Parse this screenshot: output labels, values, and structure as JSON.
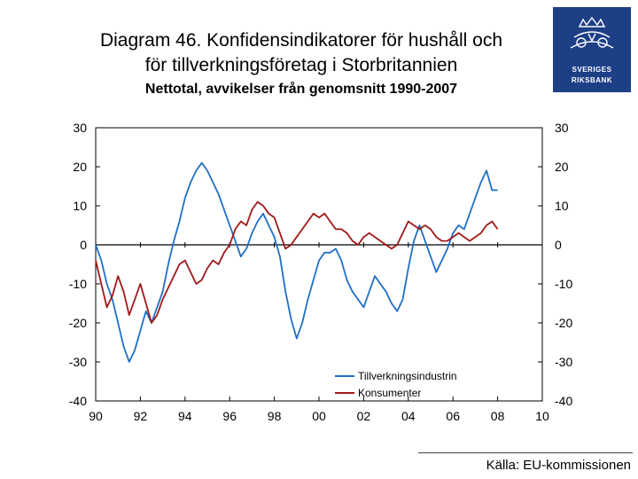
{
  "title": {
    "line1": "Diagram 46. Konfidensindikatorer för hushåll och",
    "line2": "för tillverkningsföretag i Storbritannien"
  },
  "subtitle": "Nettotal, avvikelser från genomsnitt 1990-2007",
  "source": "Källa: EU-kommissionen",
  "logo": {
    "name": "SVERIGES RIKSBANK",
    "line1": "SVERIGES",
    "line2": "RIKSBANK"
  },
  "colors": {
    "manufacturing": "#1f6fc6",
    "consumers": "#a01919",
    "axis": "#000000"
  },
  "chart_data": {
    "type": "line",
    "title": "Konfidensindikatorer för hushåll och för tillverkningsföretag i Storbritannien",
    "xlabel": "",
    "ylabel": "Nettotal, avvikelser från genomsnitt 1990-2007",
    "xlim": [
      1990,
      2010
    ],
    "ylim": [
      -40,
      30
    ],
    "x_tick_labels": [
      "90",
      "92",
      "94",
      "96",
      "98",
      "00",
      "02",
      "04",
      "06",
      "08",
      "10"
    ],
    "x_tick_values": [
      1990,
      1992,
      1994,
      1996,
      1998,
      2000,
      2002,
      2004,
      2006,
      2008,
      2010
    ],
    "y_tick_values": [
      -40,
      -30,
      -20,
      -10,
      0,
      10,
      20,
      30
    ],
    "y_tick_labels": [
      "-40",
      "-30",
      "-20",
      "-10",
      "0",
      "10",
      "20",
      "30"
    ],
    "legend_position": "bottom-right",
    "series": [
      {
        "name": "Tillverkningsindustrin",
        "x": [
          1990.0,
          1990.25,
          1990.5,
          1990.75,
          1991.0,
          1991.25,
          1991.5,
          1991.75,
          1992.0,
          1992.25,
          1992.5,
          1992.75,
          1993.0,
          1993.25,
          1993.5,
          1993.75,
          1994.0,
          1994.25,
          1994.5,
          1994.75,
          1995.0,
          1995.25,
          1995.5,
          1995.75,
          1996.0,
          1996.25,
          1996.5,
          1996.75,
          1997.0,
          1997.25,
          1997.5,
          1997.75,
          1998.0,
          1998.25,
          1998.5,
          1998.75,
          1999.0,
          1999.25,
          1999.5,
          1999.75,
          2000.0,
          2000.25,
          2000.5,
          2000.75,
          2001.0,
          2001.25,
          2001.5,
          2001.75,
          2002.0,
          2002.25,
          2002.5,
          2002.75,
          2003.0,
          2003.25,
          2003.5,
          2003.75,
          2004.0,
          2004.25,
          2004.5,
          2004.75,
          2005.0,
          2005.25,
          2005.5,
          2005.75,
          2006.0,
          2006.25,
          2006.5,
          2006.75,
          2007.0,
          2007.25,
          2007.5,
          2007.75,
          2008.0
        ],
        "values": [
          0,
          -4,
          -10,
          -14,
          -20,
          -26,
          -30,
          -27,
          -22,
          -17,
          -20,
          -16,
          -12,
          -5,
          1,
          6,
          12,
          16,
          19,
          21,
          19,
          16,
          13,
          9,
          5,
          1,
          -3,
          -1,
          3,
          6,
          8,
          5,
          2,
          -3,
          -12,
          -19,
          -24,
          -20,
          -14,
          -9,
          -4,
          -2,
          -2,
          -1,
          -4,
          -9,
          -12,
          -14,
          -16,
          -12,
          -8,
          -10,
          -12,
          -15,
          -17,
          -14,
          -6,
          1,
          5,
          1,
          -3,
          -7,
          -4,
          -1,
          3,
          5,
          4,
          8,
          12,
          16,
          19,
          14,
          14
        ]
      },
      {
        "name": "Konsumenter",
        "x": [
          1990.0,
          1990.25,
          1990.5,
          1990.75,
          1991.0,
          1991.25,
          1991.5,
          1991.75,
          1992.0,
          1992.25,
          1992.5,
          1992.75,
          1993.0,
          1993.25,
          1993.5,
          1993.75,
          1994.0,
          1994.25,
          1994.5,
          1994.75,
          1995.0,
          1995.25,
          1995.5,
          1995.75,
          1996.0,
          1996.25,
          1996.5,
          1996.75,
          1997.0,
          1997.25,
          1997.5,
          1997.75,
          1998.0,
          1998.25,
          1998.5,
          1998.75,
          1999.0,
          1999.25,
          1999.5,
          1999.75,
          2000.0,
          2000.25,
          2000.5,
          2000.75,
          2001.0,
          2001.25,
          2001.5,
          2001.75,
          2002.0,
          2002.25,
          2002.5,
          2002.75,
          2003.0,
          2003.25,
          2003.5,
          2003.75,
          2004.0,
          2004.25,
          2004.5,
          2004.75,
          2005.0,
          2005.25,
          2005.5,
          2005.75,
          2006.0,
          2006.25,
          2006.5,
          2006.75,
          2007.0,
          2007.25,
          2007.5,
          2007.75,
          2008.0
        ],
        "values": [
          -4,
          -10,
          -16,
          -13,
          -8,
          -12,
          -18,
          -14,
          -10,
          -15,
          -20,
          -18,
          -14,
          -11,
          -8,
          -5,
          -4,
          -7,
          -10,
          -9,
          -6,
          -4,
          -5,
          -2,
          0,
          4,
          6,
          5,
          9,
          11,
          10,
          8,
          7,
          3,
          -1,
          0,
          2,
          4,
          6,
          8,
          7,
          8,
          6,
          4,
          4,
          3,
          1,
          0,
          2,
          3,
          2,
          1,
          0,
          -1,
          0,
          3,
          6,
          5,
          4,
          5,
          4,
          2,
          1,
          1,
          2,
          3,
          2,
          1,
          2,
          3,
          5,
          6,
          4
        ]
      }
    ]
  }
}
